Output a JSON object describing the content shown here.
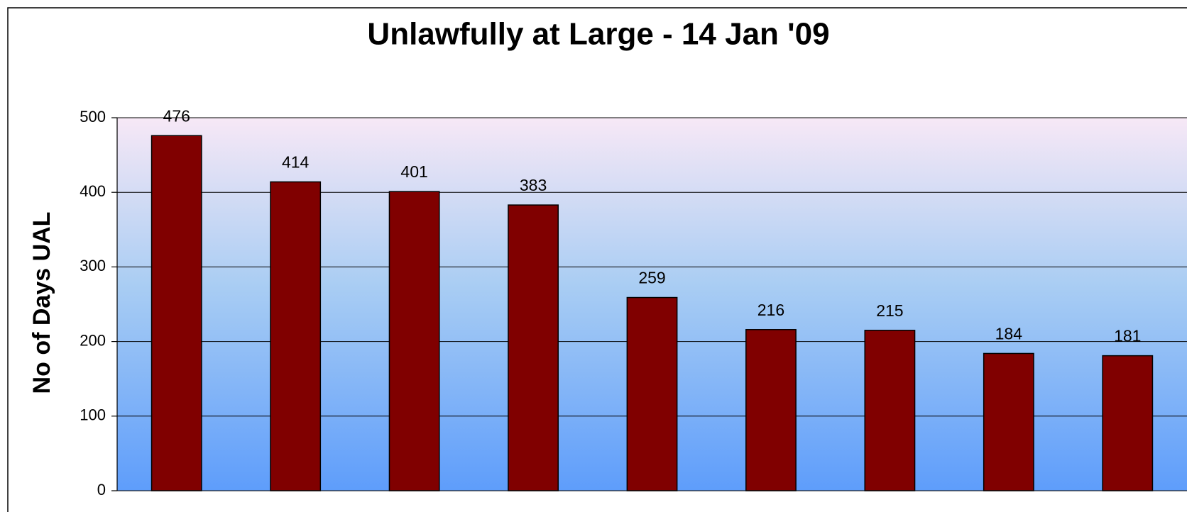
{
  "chart_data": {
    "type": "bar",
    "title": "Unlawfully at Large - 14 Jan '09",
    "y_label": "No of Days UAL",
    "values": [
      476,
      414,
      401,
      383,
      259,
      216,
      215,
      184,
      181
    ],
    "color": "#800000",
    "ylim": [
      0,
      500
    ],
    "yticks": [
      0,
      100,
      200,
      300,
      400,
      500
    ],
    "grid": true
  }
}
